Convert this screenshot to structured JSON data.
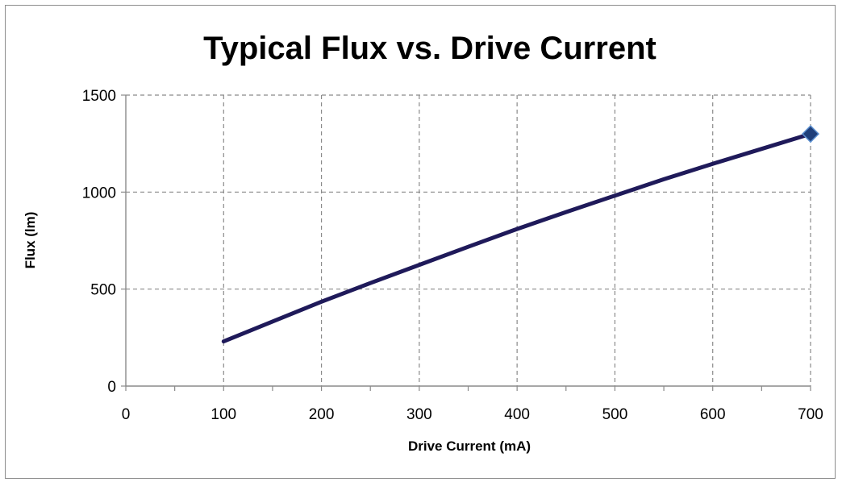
{
  "chart_data": {
    "type": "line",
    "title": "Typical Flux vs. Drive Current",
    "xlabel": "Drive Current (mA)",
    "ylabel": "Flux (lm)",
    "xlim": [
      0,
      700
    ],
    "ylim": [
      0,
      1500
    ],
    "xticks": [
      "0",
      "100",
      "200",
      "300",
      "400",
      "500",
      "600",
      "700"
    ],
    "yticks": [
      "0",
      "500",
      "1000",
      "1500"
    ],
    "grid": true,
    "legend": "none",
    "series": [
      {
        "color": "#1f1a5a",
        "marker_color": "#1f3f7a",
        "x": [
          100,
          150,
          200,
          250,
          300,
          350,
          400,
          450,
          500,
          550,
          600,
          650,
          700
        ],
        "y": [
          230,
          333,
          435,
          531,
          625,
          718,
          810,
          897,
          982,
          1066,
          1146,
          1223,
          1300
        ],
        "end_marker": "diamond"
      }
    ]
  }
}
